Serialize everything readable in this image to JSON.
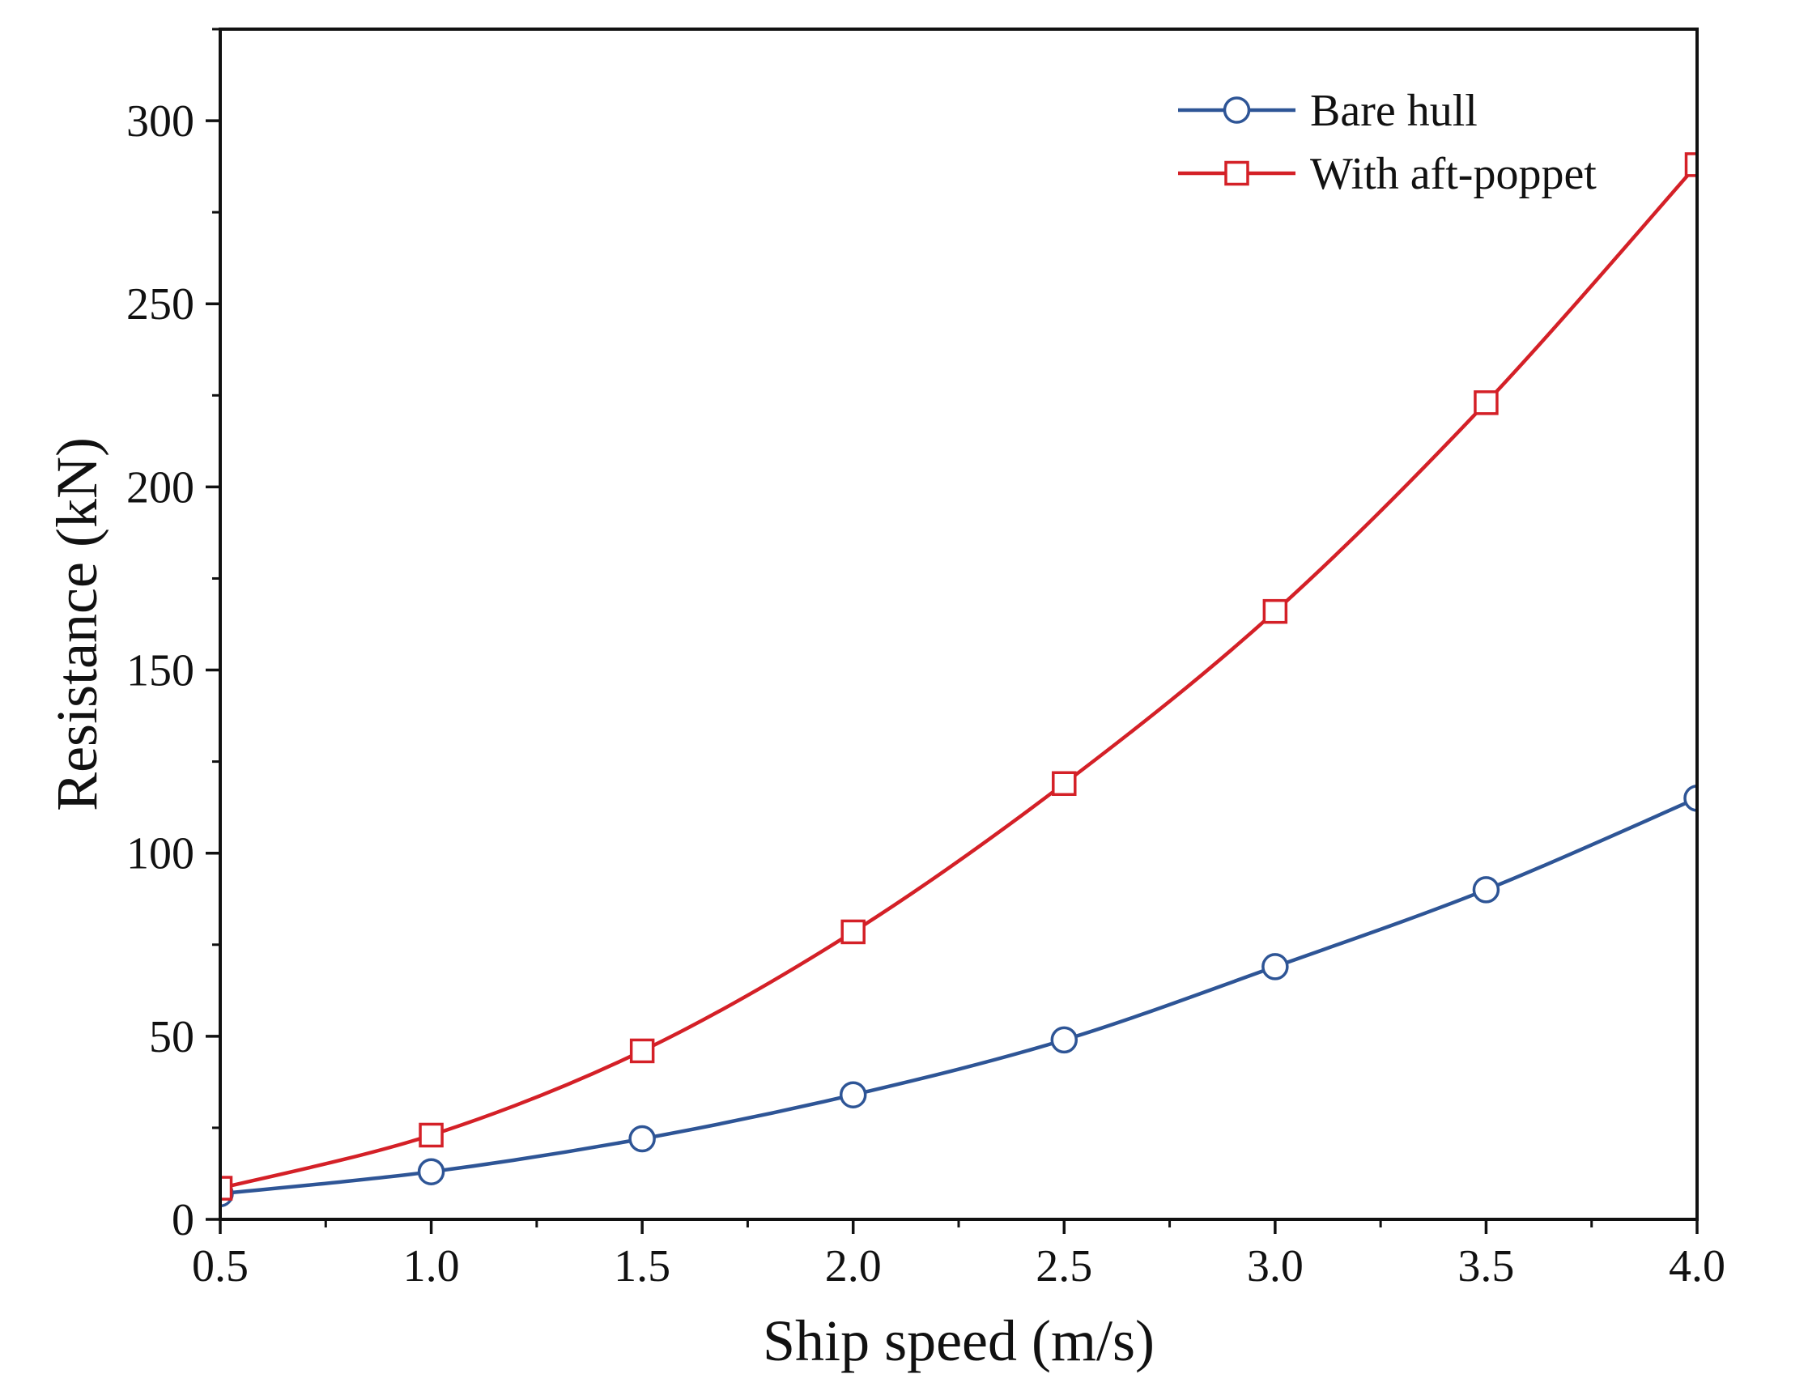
{
  "chart_data": {
    "type": "line",
    "title": "",
    "xlabel": "Ship speed (m/s)",
    "ylabel": "Resistance (kN)",
    "xlim": [
      0.5,
      4.0
    ],
    "ylim": [
      0,
      325
    ],
    "xticks": [
      0.5,
      1.0,
      1.5,
      2.0,
      2.5,
      3.0,
      3.5,
      4.0
    ],
    "xtick_labels": [
      "0.5",
      "1.0",
      "1.5",
      "2.0",
      "2.5",
      "3.0",
      "3.5",
      "4.0"
    ],
    "yticks": [
      0,
      50,
      100,
      150,
      200,
      250,
      300
    ],
    "ytick_labels": [
      "0",
      "50",
      "100",
      "150",
      "200",
      "250",
      "300"
    ],
    "grid": false,
    "legend_position": "top-right",
    "x": [
      0.5,
      1.0,
      1.5,
      2.0,
      2.5,
      3.0,
      3.5,
      4.0
    ],
    "series": [
      {
        "name": "Bare hull",
        "color": "#2e5596",
        "marker": "circle",
        "values": [
          7,
          13,
          22,
          34,
          49,
          69,
          90,
          115
        ]
      },
      {
        "name": "With aft-poppet",
        "color": "#d42027",
        "marker": "square",
        "values": [
          8.5,
          23,
          46,
          78.5,
          119,
          166,
          223,
          288
        ]
      }
    ]
  }
}
